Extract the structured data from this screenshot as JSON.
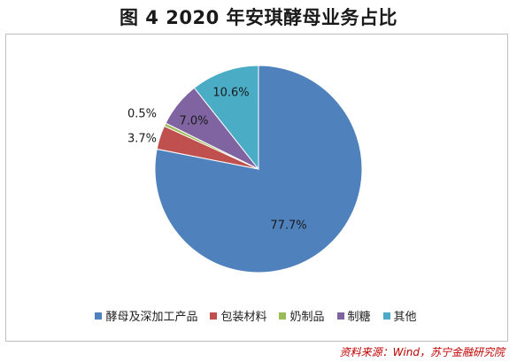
{
  "title": "图 4  2020 年安琪酵母业务占比",
  "source": "资料来源：Wind，苏宁金融研究院",
  "chart_data": {
    "type": "pie",
    "title": "图 4  2020 年安琪酵母业务占比",
    "categories": [
      "酵母及深加工产品",
      "包装材料",
      "奶制品",
      "制糖",
      "其他"
    ],
    "values": [
      77.7,
      3.7,
      0.5,
      7.0,
      10.6
    ],
    "labels": [
      "77.7%",
      "3.7%",
      "0.5%",
      "7.0%",
      "10.6%"
    ],
    "colors": [
      "#4f81bd",
      "#c0504d",
      "#9bbb59",
      "#8064a2",
      "#4bacc6"
    ],
    "legend_position": "bottom"
  }
}
